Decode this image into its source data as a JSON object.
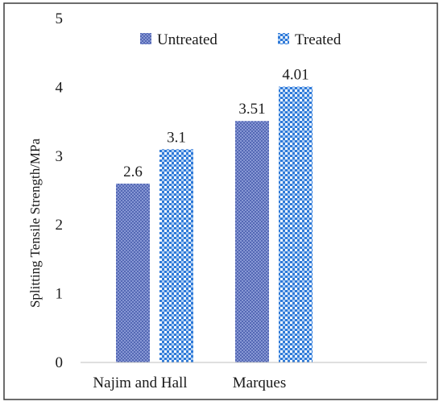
{
  "chart_data": {
    "type": "bar",
    "categories": [
      "Najim and Hall",
      "Marques"
    ],
    "series": [
      {
        "name": "Untreated",
        "values": [
          2.6,
          3.51
        ],
        "labels": [
          "2.6",
          "3.51"
        ],
        "color": "#4a5fa8"
      },
      {
        "name": "Treated",
        "values": [
          3.1,
          4.01
        ],
        "labels": [
          "3.1",
          "4.01"
        ],
        "color": "#2a78d6"
      }
    ],
    "title": "",
    "xlabel": "",
    "ylabel": "Splitting Tensile Strength/MPa",
    "ylim": [
      0,
      5
    ],
    "yticks": [
      "0",
      "1",
      "2",
      "3",
      "4",
      "5"
    ],
    "grid": false,
    "legend": "top-center"
  }
}
